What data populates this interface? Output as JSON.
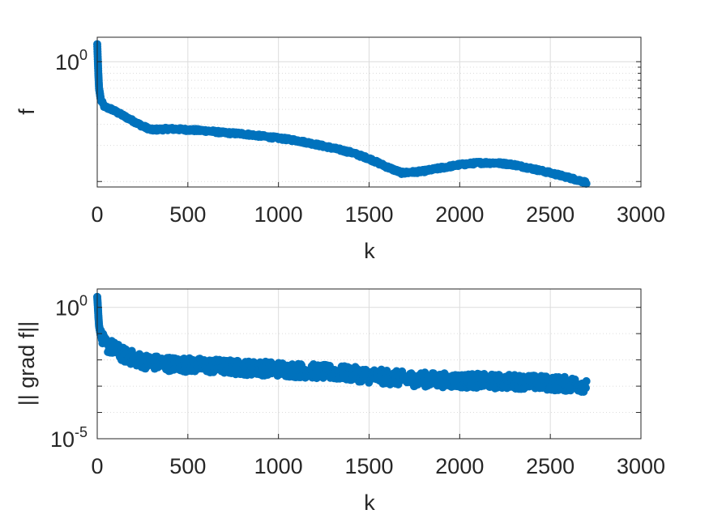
{
  "figure": {
    "marker_color": "#0072BD"
  },
  "chart_data": [
    {
      "type": "scatter",
      "title": "",
      "xlabel": "k",
      "ylabel": "f",
      "xlim": [
        0,
        3000
      ],
      "ylim": [
        0.09,
        1.6
      ],
      "yscale": "log",
      "xticks": [
        0,
        500,
        1000,
        1500,
        2000,
        2500,
        3000
      ],
      "xtick_labels": [
        "0",
        "500",
        "1000",
        "1500",
        "2000",
        "2500",
        "3000"
      ],
      "ytick_labels": [
        {
          "value": 1,
          "base": "10",
          "exp": "0"
        }
      ],
      "grid": true,
      "series": [
        {
          "x": [
            0,
            3,
            6,
            10,
            20,
            40,
            80,
            150,
            250,
            300,
            400,
            500,
            600,
            700,
            800,
            900,
            1000,
            1100,
            1200,
            1300,
            1400,
            1500,
            1600,
            1680,
            1750,
            1800,
            1900,
            2000,
            2100,
            2200,
            2300,
            2400,
            2500,
            2600,
            2700
          ],
          "values": [
            1.4,
            1.05,
            0.8,
            0.6,
            0.48,
            0.42,
            0.4,
            0.35,
            0.29,
            0.27,
            0.275,
            0.27,
            0.265,
            0.255,
            0.25,
            0.24,
            0.23,
            0.22,
            0.205,
            0.19,
            0.175,
            0.155,
            0.132,
            0.118,
            0.12,
            0.122,
            0.13,
            0.138,
            0.143,
            0.143,
            0.138,
            0.128,
            0.118,
            0.108,
            0.098
          ],
          "spread": 1.05
        }
      ]
    },
    {
      "type": "scatter",
      "title": "",
      "xlabel": "k",
      "ylabel": "|| grad f||",
      "xlim": [
        0,
        3000
      ],
      "ylim": [
        1e-05,
        5
      ],
      "yscale": "log",
      "xticks": [
        0,
        500,
        1000,
        1500,
        2000,
        2500,
        3000
      ],
      "xtick_labels": [
        "0",
        "500",
        "1000",
        "1500",
        "2000",
        "2500",
        "3000"
      ],
      "ytick_labels": [
        {
          "value": 1,
          "base": "10",
          "exp": "0"
        },
        {
          "value": 1e-05,
          "base": "10",
          "exp": "-5"
        }
      ],
      "grid": true,
      "series": [
        {
          "x": [
            0,
            3,
            6,
            10,
            20,
            40,
            80,
            150,
            250,
            300,
            400,
            500,
            600,
            700,
            800,
            900,
            1000,
            1100,
            1200,
            1300,
            1400,
            1500,
            1600,
            1700,
            1800,
            1900,
            2000,
            2100,
            2200,
            2300,
            2400,
            2500,
            2600,
            2700
          ],
          "values": [
            2.5,
            1.2,
            0.5,
            0.2,
            0.08,
            0.04,
            0.03,
            0.015,
            0.009,
            0.008,
            0.007,
            0.0065,
            0.006,
            0.0055,
            0.005,
            0.0048,
            0.0045,
            0.004,
            0.0037,
            0.0033,
            0.003,
            0.0025,
            0.0022,
            0.0019,
            0.0018,
            0.0017,
            0.0016,
            0.0016,
            0.0015,
            0.0015,
            0.0014,
            0.0013,
            0.0012,
            0.0011
          ],
          "spread": 3.5
        }
      ]
    }
  ]
}
